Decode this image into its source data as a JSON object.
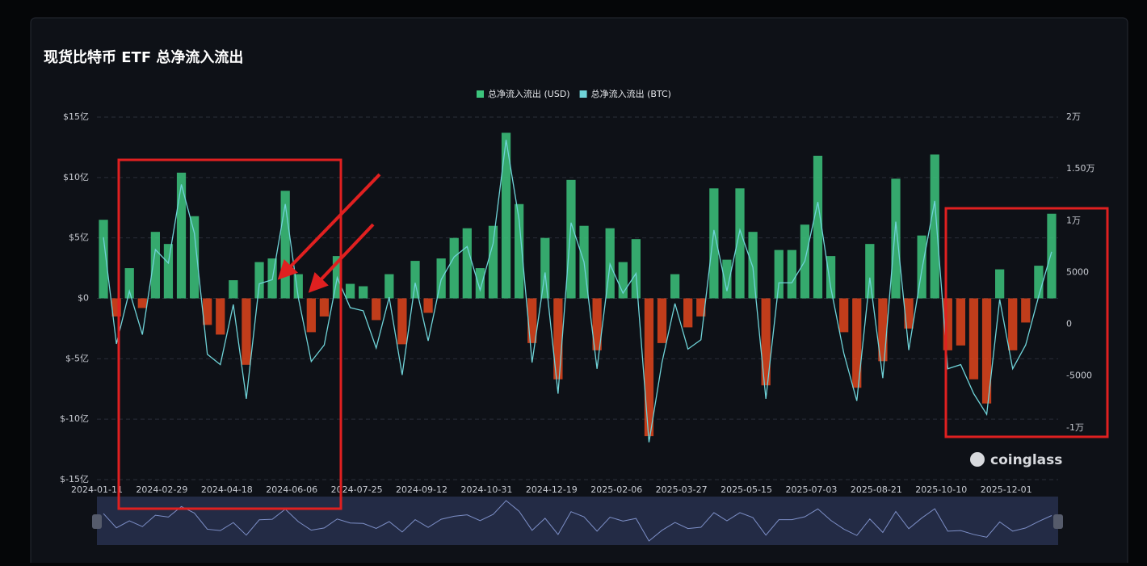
{
  "chart_data": {
    "type": "bar",
    "title": "现货比特币 ETF 总净流入流出",
    "watermark": "coinglass",
    "categories": [
      "2024-01-11",
      null,
      null,
      null,
      null,
      "2024-02-29",
      null,
      null,
      null,
      null,
      "2024-04-18",
      null,
      null,
      null,
      null,
      "2024-06-06",
      null,
      null,
      null,
      null,
      "2024-07-25",
      null,
      null,
      null,
      null,
      "2024-09-12",
      null,
      null,
      null,
      null,
      "2024-10-31",
      null,
      null,
      null,
      null,
      "2024-12-19",
      null,
      null,
      null,
      null,
      "2025-02-06",
      null,
      null,
      null,
      null,
      "2025-03-27",
      null,
      null,
      null,
      null,
      "2025-05-15",
      null,
      null,
      null,
      null,
      "2025-07-03",
      null,
      null,
      null,
      null,
      "2025-08-21",
      null,
      null,
      null,
      null,
      "2025-10-10",
      null,
      null,
      null,
      null,
      "2025-12-01",
      null,
      null,
      null
    ],
    "series": [
      {
        "name": "总净流入流出 (USD)",
        "type": "bar",
        "color": "#3cc47c",
        "negative_color": "#e0451c",
        "values": [
          6.5,
          -1.5,
          2.5,
          -0.8,
          5.5,
          4.5,
          10.4,
          6.8,
          -2.2,
          -3,
          1.5,
          -5.5,
          3,
          3.3,
          8.9,
          2,
          -2.8,
          -1.5,
          3.5,
          1.2,
          1,
          -1.8,
          2,
          -3.8,
          3.1,
          -1.2,
          3.3,
          5,
          5.8,
          2.5,
          6,
          13.7,
          7.8,
          -3.7,
          5,
          -6.7,
          9.8,
          6,
          -4.3,
          5.8,
          3,
          4.9,
          -11.4,
          -3.7,
          2,
          -2.4,
          -1.5,
          9.1,
          3.2,
          9.1,
          5.5,
          -7.2,
          4,
          4,
          6.1,
          11.8,
          3.5,
          -2.8,
          -7.4,
          4.5,
          -5.2,
          9.9,
          -2.5,
          5.2,
          11.9,
          -4.3,
          -3.9,
          -6.7,
          -8.7,
          2.4,
          -4.3,
          -2,
          2.7,
          7
        ]
      },
      {
        "name": "总净流入流出 (BTC)",
        "type": "line",
        "axis": "y2",
        "color": "#6fd3d8",
        "values": [
          8400,
          -1900,
          3200,
          -1000,
          7200,
          5900,
          13500,
          8800,
          -2900,
          -3900,
          1900,
          -7200,
          3900,
          4300,
          11600,
          2600,
          -3600,
          -2000,
          4500,
          1600,
          1300,
          -2300,
          2600,
          -4900,
          4000,
          -1600,
          4300,
          6500,
          7500,
          3300,
          7800,
          17800,
          10100,
          -3700,
          5000,
          -6700,
          9800,
          6000,
          -4300,
          5800,
          3000,
          4900,
          -11400,
          -3700,
          2000,
          -2400,
          -1500,
          9100,
          3200,
          9100,
          5500,
          -7200,
          4000,
          4000,
          6100,
          11800,
          3500,
          -2800,
          -7400,
          4500,
          -5200,
          9900,
          -2500,
          5200,
          11900,
          -4300,
          -3900,
          -6700,
          -8700,
          2400,
          -4300,
          -2000,
          2700,
          7000
        ]
      }
    ],
    "ylim": [
      -15,
      15
    ],
    "yticks": [
      {
        "value": 15,
        "label": "$15亿"
      },
      {
        "value": 10,
        "label": "$10亿"
      },
      {
        "value": 5,
        "label": "$5亿"
      },
      {
        "value": 0,
        "label": "$0"
      },
      {
        "value": -5,
        "label": "$-5亿"
      },
      {
        "value": -10,
        "label": "$-10亿"
      },
      {
        "value": -15,
        "label": "$-15亿"
      }
    ],
    "y2lim": [
      -15000,
      20000
    ],
    "y2ticks": [
      {
        "value": 20000,
        "label": "2万"
      },
      {
        "value": 15000,
        "label": "1.50万"
      },
      {
        "value": 10000,
        "label": "1万"
      },
      5000,
      0,
      -5000,
      {
        "value": -10000,
        "label": "-1万"
      }
    ],
    "grid": true
  }
}
